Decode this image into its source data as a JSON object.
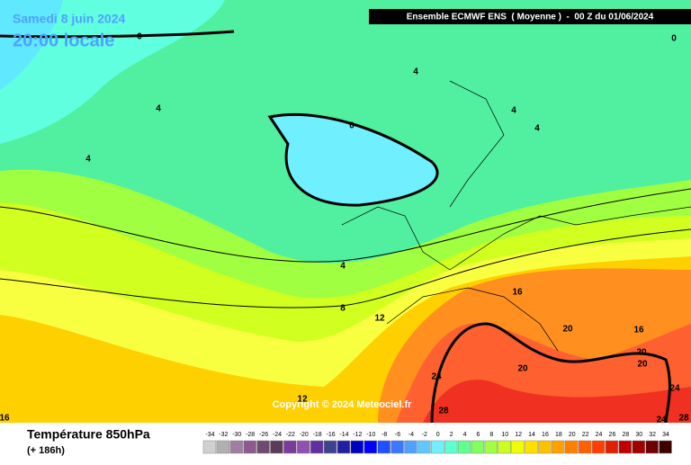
{
  "header": {
    "date": "Samedi 8 juin 2024",
    "time": "20:00 locale",
    "run": "Ensemble ECMWF ENS  ( Moyenne )  -  00 Z du 01/06/2024"
  },
  "contour_labels": [
    0,
    0,
    4,
    4,
    4,
    4,
    0,
    4,
    4,
    8,
    12,
    16,
    20,
    16,
    20,
    20,
    20,
    24,
    24,
    12,
    28,
    16,
    24,
    28
  ],
  "copyright": "Copyright © 2024 Meteociel.fr",
  "footer": {
    "title": "Température 850hPa",
    "lead": "(+ 186h)"
  },
  "legend": {
    "values": [
      -34,
      -32,
      -30,
      -28,
      -26,
      -24,
      -22,
      -20,
      -18,
      -16,
      -14,
      -12,
      -10,
      -8,
      -6,
      -4,
      -2,
      0,
      2,
      4,
      6,
      8,
      10,
      12,
      14,
      16,
      18,
      20,
      22,
      24,
      26,
      28,
      30,
      32,
      34
    ],
    "colors": [
      "#d0d0d0",
      "#b0b0b0",
      "#a080a0",
      "#8c5a8c",
      "#6e4a6e",
      "#5a3c5a",
      "#7a3c9a",
      "#9050b0",
      "#6030a0",
      "#404090",
      "#2020a0",
      "#0000c0",
      "#0000ff",
      "#2050ff",
      "#3c78ff",
      "#50a0ff",
      "#60c8ff",
      "#70f0ff",
      "#60ffd0",
      "#60ff90",
      "#80ff60",
      "#a0ff40",
      "#c8ff20",
      "#f0ff00",
      "#ffe000",
      "#ffc000",
      "#ffa000",
      "#ff8000",
      "#ff6000",
      "#ff4000",
      "#e02000",
      "#c00000",
      "#a00000",
      "#700000",
      "#400000"
    ]
  }
}
